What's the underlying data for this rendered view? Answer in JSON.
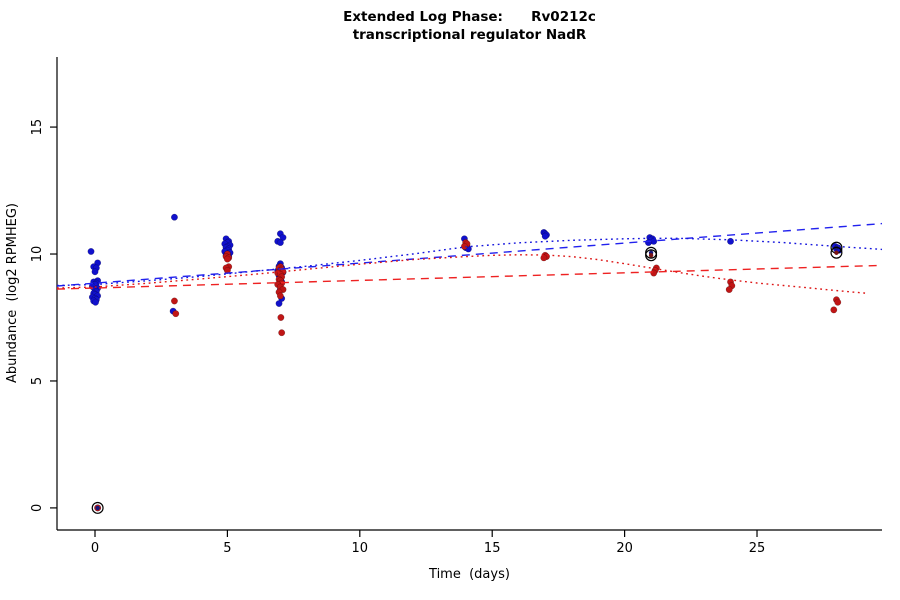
{
  "chart_data": {
    "type": "scatter",
    "title_line1": "Extended Log Phase:      Rv0212c",
    "title_line2": "transcriptional regulator NadR",
    "xlabel": "Time  (days)",
    "ylabel": "Abundance  (log2 RPMHEG)",
    "x_ticks": [
      0,
      5,
      10,
      15,
      20,
      25
    ],
    "y_ticks": [
      0,
      5,
      10,
      15
    ],
    "x_range": [
      -1.435,
      29.72
    ],
    "y_range": [
      -0.87,
      17.76
    ],
    "grid": false,
    "legend": "none",
    "colors": {
      "blue_points": "#1111cc",
      "red_points": "#c01616",
      "blue_line": "#2222ee",
      "red_line": "#ee2222",
      "flag_circle": "#000000"
    },
    "series": [
      {
        "name": "blue-points",
        "color": "#1111cc",
        "points": [
          [
            -0.15,
            10.1
          ],
          [
            0.1,
            9.65
          ],
          [
            -0.05,
            9.5
          ],
          [
            0.05,
            9.45
          ],
          [
            0,
            9.3
          ],
          [
            0.1,
            8.95
          ],
          [
            -0.05,
            8.9
          ],
          [
            0.05,
            8.85
          ],
          [
            0,
            8.8
          ],
          [
            -0.1,
            8.72
          ],
          [
            0.1,
            8.65
          ],
          [
            0,
            8.6
          ],
          [
            0.05,
            8.52
          ],
          [
            -0.05,
            8.45
          ],
          [
            0,
            8.4
          ],
          [
            0.1,
            8.35
          ],
          [
            -0.1,
            8.3
          ],
          [
            0,
            8.25
          ],
          [
            0.05,
            8.2
          ],
          [
            -0.05,
            8.15
          ],
          [
            0.02,
            8.1
          ],
          [
            0.1,
            0
          ],
          [
            3.0,
            11.45
          ],
          [
            2.95,
            7.75
          ],
          [
            4.95,
            10.6
          ],
          [
            5.05,
            10.5
          ],
          [
            5,
            10.45
          ],
          [
            4.9,
            10.4
          ],
          [
            5.1,
            10.35
          ],
          [
            5,
            10.3
          ],
          [
            4.95,
            10.25
          ],
          [
            5.05,
            10.2
          ],
          [
            5,
            10.15
          ],
          [
            4.9,
            10.1
          ],
          [
            5.1,
            10.05
          ],
          [
            5,
            10.0
          ],
          [
            4.95,
            9.95
          ],
          [
            5.05,
            9.9
          ],
          [
            7,
            10.8
          ],
          [
            7.1,
            10.65
          ],
          [
            6.9,
            10.5
          ],
          [
            7,
            10.45
          ],
          [
            7,
            9.62
          ],
          [
            6.95,
            9.52
          ],
          [
            7.05,
            9.46
          ],
          [
            7,
            9.4
          ],
          [
            6.9,
            9.34
          ],
          [
            7.1,
            9.28
          ],
          [
            7,
            9.22
          ],
          [
            6.95,
            9.15
          ],
          [
            7.05,
            8.9
          ],
          [
            7,
            8.6
          ],
          [
            7.05,
            8.25
          ],
          [
            6.95,
            8.05
          ],
          [
            13.95,
            10.6
          ],
          [
            14,
            10.35
          ],
          [
            14.05,
            10.3
          ],
          [
            14,
            10.25
          ],
          [
            14.1,
            10.2
          ],
          [
            16.95,
            10.85
          ],
          [
            17,
            10.8
          ],
          [
            17.05,
            10.75
          ],
          [
            17,
            10.7
          ],
          [
            20.95,
            10.65
          ],
          [
            21.05,
            10.6
          ],
          [
            21,
            10.55
          ],
          [
            21.1,
            10.5
          ],
          [
            20.9,
            10.45
          ],
          [
            24,
            10.5
          ],
          [
            27.95,
            10.3
          ],
          [
            28.05,
            10.25
          ],
          [
            28,
            10.2
          ],
          [
            28.1,
            10.15
          ]
        ]
      },
      {
        "name": "red-points",
        "color": "#c01616",
        "points": [
          [
            0.1,
            0
          ],
          [
            3.0,
            8.15
          ],
          [
            3.05,
            7.65
          ],
          [
            5,
            10.0
          ],
          [
            4.95,
            9.9
          ],
          [
            5.05,
            9.85
          ],
          [
            5,
            9.8
          ],
          [
            5.05,
            9.5
          ],
          [
            4.95,
            9.45
          ],
          [
            5,
            9.35
          ],
          [
            7,
            9.5
          ],
          [
            6.95,
            9.45
          ],
          [
            7.05,
            9.4
          ],
          [
            7,
            9.35
          ],
          [
            7.1,
            9.3
          ],
          [
            6.9,
            9.25
          ],
          [
            7,
            9.2
          ],
          [
            7.05,
            9.1
          ],
          [
            6.95,
            9.0
          ],
          [
            7,
            8.95
          ],
          [
            7.05,
            8.85
          ],
          [
            6.9,
            8.8
          ],
          [
            7,
            8.7
          ],
          [
            7.1,
            8.6
          ],
          [
            6.95,
            8.5
          ],
          [
            7,
            8.35
          ],
          [
            7.02,
            7.5
          ],
          [
            7.05,
            6.9
          ],
          [
            14,
            10.45
          ],
          [
            14.05,
            10.4
          ],
          [
            13.95,
            10.3
          ],
          [
            17,
            9.95
          ],
          [
            17.05,
            9.9
          ],
          [
            16.95,
            9.85
          ],
          [
            21.2,
            9.45
          ],
          [
            21.15,
            9.35
          ],
          [
            21.1,
            9.25
          ],
          [
            24,
            8.9
          ],
          [
            24.05,
            8.75
          ],
          [
            23.95,
            8.6
          ],
          [
            28,
            8.2
          ],
          [
            28.05,
            8.1
          ],
          [
            27.9,
            7.8
          ]
        ]
      },
      {
        "name": "flagged-points",
        "color": "#000000",
        "points": [
          [
            0.1,
            0,
            "#15157a"
          ],
          [
            21,
            10.05,
            "#15157a"
          ],
          [
            21,
            9.95,
            "#7a1515"
          ],
          [
            28,
            10.25,
            "#15157a"
          ],
          [
            28,
            10.05,
            "#7a1515"
          ]
        ]
      }
    ],
    "fit_lines": [
      {
        "name": "blue-linear-fit",
        "color": "#2222ee",
        "style": "dashed",
        "points": [
          [
            -1.435,
            8.74
          ],
          [
            29.72,
            11.2
          ]
        ]
      },
      {
        "name": "red-linear-fit",
        "color": "#ee2222",
        "style": "dashed",
        "points": [
          [
            -1.435,
            8.62
          ],
          [
            29.72,
            9.55
          ]
        ]
      },
      {
        "name": "blue-smooth-fit",
        "color": "#1515dd",
        "style": "dotted",
        "points": [
          [
            -1.435,
            8.76
          ],
          [
            0,
            8.8
          ],
          [
            2,
            8.95
          ],
          [
            4,
            9.12
          ],
          [
            6,
            9.32
          ],
          [
            8,
            9.52
          ],
          [
            10,
            9.75
          ],
          [
            12,
            10.0
          ],
          [
            14,
            10.28
          ],
          [
            16,
            10.44
          ],
          [
            18,
            10.54
          ],
          [
            20,
            10.6
          ],
          [
            21,
            10.62
          ],
          [
            22,
            10.62
          ],
          [
            24,
            10.56
          ],
          [
            26,
            10.45
          ],
          [
            28,
            10.3
          ],
          [
            29.72,
            10.18
          ]
        ]
      },
      {
        "name": "red-smooth-fit",
        "color": "#dd1515",
        "style": "dotted",
        "points": [
          [
            -1.435,
            8.66
          ],
          [
            0,
            8.7
          ],
          [
            2,
            8.85
          ],
          [
            4,
            9.02
          ],
          [
            6,
            9.2
          ],
          [
            8,
            9.4
          ],
          [
            10,
            9.6
          ],
          [
            12,
            9.78
          ],
          [
            14,
            9.9
          ],
          [
            15,
            9.95
          ],
          [
            16,
            9.97
          ],
          [
            17,
            9.96
          ],
          [
            18,
            9.9
          ],
          [
            19,
            9.78
          ],
          [
            20,
            9.62
          ],
          [
            21,
            9.45
          ],
          [
            22,
            9.28
          ],
          [
            23,
            9.12
          ],
          [
            24,
            8.98
          ],
          [
            25,
            8.86
          ],
          [
            26,
            8.76
          ],
          [
            27,
            8.66
          ],
          [
            28,
            8.56
          ],
          [
            29.2,
            8.45
          ]
        ]
      }
    ]
  }
}
